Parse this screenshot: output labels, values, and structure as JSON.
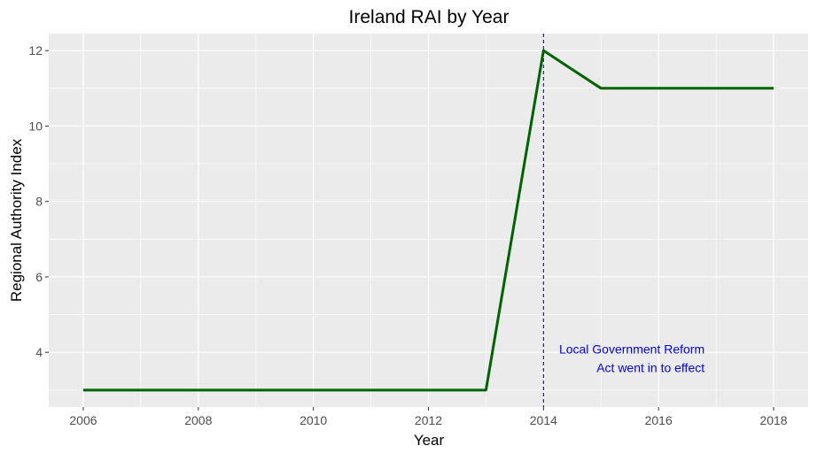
{
  "chart_data": {
    "type": "line",
    "title": "Ireland RAI by Year",
    "xlabel": "Year",
    "ylabel": "Regional Authority Index",
    "x": [
      2006,
      2007,
      2008,
      2009,
      2010,
      2011,
      2012,
      2013,
      2014,
      2015,
      2016,
      2017,
      2018
    ],
    "series": [
      {
        "values": [
          3,
          3,
          3,
          3,
          3,
          3,
          3,
          3,
          12,
          11,
          11,
          11,
          11
        ]
      }
    ],
    "xlim": [
      2005.4,
      2018.6
    ],
    "ylim": [
      2.55,
      12.45
    ],
    "x_ticks": [
      2006,
      2008,
      2010,
      2012,
      2014,
      2016,
      2018
    ],
    "y_ticks": [
      4,
      6,
      8,
      10,
      12
    ],
    "grid": true,
    "legend": "none",
    "vline": {
      "x": 2014,
      "style": "dashed",
      "color": "#0000ff"
    },
    "annotation": {
      "lines": [
        "Local Government Reform",
        "Act went in to effect"
      ],
      "x": 2016.8,
      "y": 3.85,
      "align": "right"
    },
    "colors": {
      "series": "#006400",
      "panel": "#ebebeb",
      "grid": "#ffffff",
      "annotation": "#0000ff"
    }
  }
}
